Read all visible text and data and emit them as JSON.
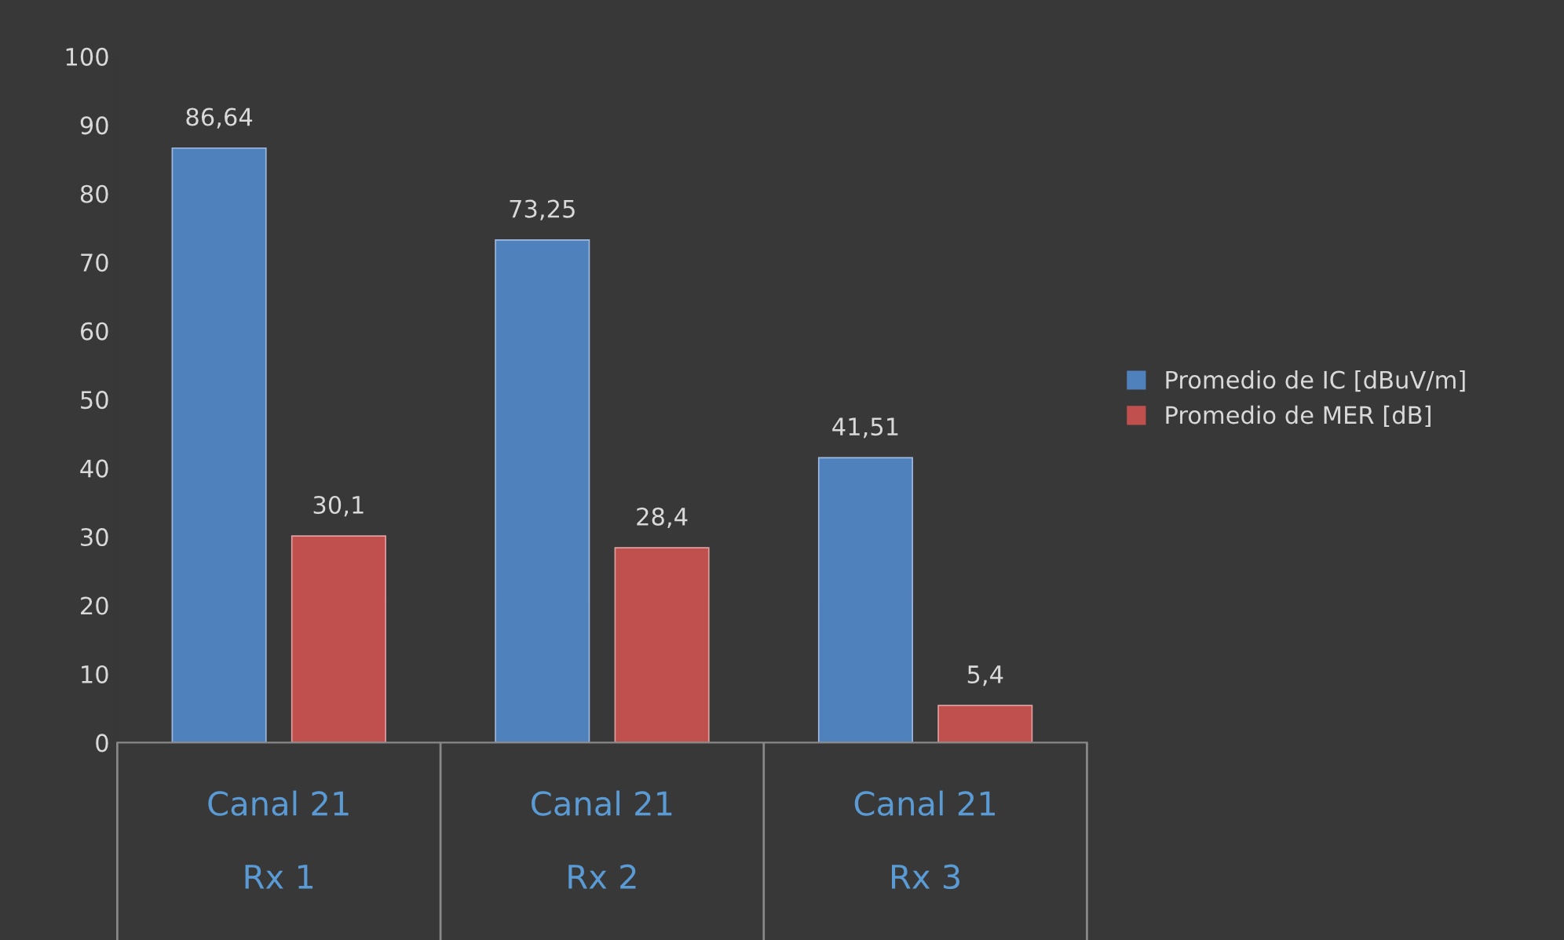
{
  "chart_data": {
    "type": "bar",
    "categories": [
      "Canal 21\n\nRx 1",
      "Canal 21\n\nRx 2",
      "Canal 21\n\nRx 3"
    ],
    "series": [
      {
        "name": "Promedio de IC [dBuV/m]",
        "color": "#4f81bd",
        "values": [
          86.64,
          73.25,
          41.51
        ],
        "value_labels": [
          "86,64",
          "73,25",
          "41,51"
        ]
      },
      {
        "name": "Promedio de MER [dB]",
        "color": "#c0504d",
        "values": [
          30.1,
          28.4,
          5.4
        ],
        "value_labels": [
          "30,1",
          "28,4",
          "5,4"
        ]
      }
    ],
    "ylim": [
      0,
      100
    ],
    "yticks": [
      0,
      10,
      20,
      30,
      40,
      50,
      60,
      70,
      80,
      90,
      100
    ],
    "grid": false,
    "legend": "right"
  }
}
